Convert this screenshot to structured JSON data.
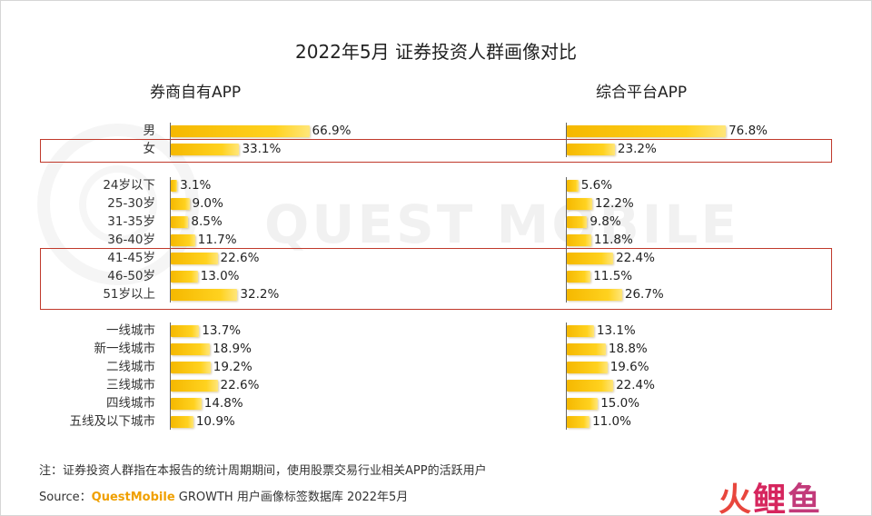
{
  "title": "2022年5月 证券投资人群画像对比",
  "panels": [
    "券商自有APP",
    "综合平台APP"
  ],
  "watermark": "QUEST MOBILE",
  "note": "注：证券投资人群指在本报告的统计周期期间，使用股票交易行业相关APP的活跃用户",
  "source": {
    "prefix": "Source：",
    "brand": "QuestMobile",
    "rest": " GROWTH 用户画像标签数据库 2022年5月"
  },
  "logo": [
    "火",
    "鲤",
    "鱼"
  ],
  "colors": {
    "bar": "#f5b800",
    "highlight": "#c0392b"
  },
  "chart_data": {
    "type": "bar",
    "orientation": "horizontal",
    "title": "2022年5月 证券投资人群画像对比",
    "unit": "%",
    "groups": [
      {
        "categories": [
          "男",
          "女"
        ],
        "highlight": [
          "女"
        ]
      },
      {
        "categories": [
          "24岁以下",
          "25-30岁",
          "31-35岁",
          "36-40岁",
          "41-45岁",
          "46-50岁",
          "51岁以上"
        ],
        "highlight": [
          "41-45岁",
          "46-50岁",
          "51岁以上"
        ]
      },
      {
        "categories": [
          "一线城市",
          "新一线城市",
          "二线城市",
          "三线城市",
          "四线城市",
          "五线及以下城市"
        ],
        "highlight": []
      }
    ],
    "categories": [
      "男",
      "女",
      "24岁以下",
      "25-30岁",
      "31-35岁",
      "36-40岁",
      "41-45岁",
      "46-50岁",
      "51岁以上",
      "一线城市",
      "新一线城市",
      "二线城市",
      "三线城市",
      "四线城市",
      "五线及以下城市"
    ],
    "series": [
      {
        "name": "券商自有APP",
        "values": [
          66.9,
          33.1,
          3.1,
          9.0,
          8.5,
          11.7,
          22.6,
          13.0,
          32.2,
          13.7,
          18.9,
          19.2,
          22.6,
          14.8,
          10.9
        ]
      },
      {
        "name": "综合平台APP",
        "values": [
          76.8,
          23.2,
          5.6,
          12.2,
          9.8,
          11.8,
          22.4,
          11.5,
          26.7,
          13.1,
          18.8,
          19.6,
          22.4,
          15.0,
          11.0
        ]
      }
    ],
    "labels": [
      [
        "66.9%",
        "33.1%",
        "3.1%",
        "9.0%",
        "8.5%",
        "11.7%",
        "22.6%",
        "13.0%",
        "32.2%",
        "13.7%",
        "18.9%",
        "19.2%",
        "22.6%",
        "14.8%",
        "10.9%"
      ],
      [
        "76.8%",
        "23.2%",
        "5.6%",
        "12.2%",
        "9.8%",
        "11.8%",
        "22.4%",
        "11.5%",
        "26.7%",
        "13.1%",
        "18.8%",
        "19.6%",
        "22.4%",
        "15.0%",
        "11.0%"
      ]
    ],
    "xlim": [
      0,
      100
    ],
    "legend": "none",
    "grid": false
  }
}
